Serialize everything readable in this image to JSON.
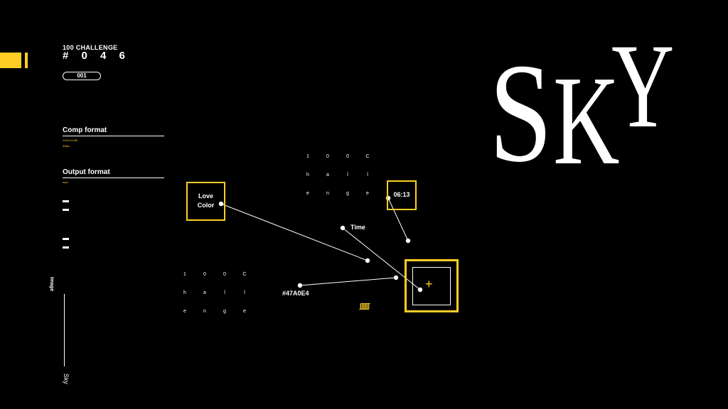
{
  "header": {
    "challenge_label": "100 CHALLENGE",
    "challenge_number": "# 0 4 6",
    "pill_label": "001"
  },
  "sidebar": {
    "comp_format_title": "Comp format",
    "comp_values": [
      "1920x1080",
      "30fps"
    ],
    "output_format_title": "Output format",
    "output_value": "mp4",
    "image_label": "Image",
    "sky_label": "Sky"
  },
  "title": {
    "s": "S",
    "k": "K",
    "y": "Y"
  },
  "nodes": {
    "love_color": [
      "Love",
      "Color"
    ],
    "time_value": "06:13",
    "time_label": "Time",
    "hex_color": "#47A0E4",
    "plus": "+",
    "squiggle": "∫∫∫∫∫∫"
  },
  "letter_grid": [
    "1",
    "0",
    "0",
    "C",
    "h",
    "a",
    "l",
    "l",
    "e",
    "n",
    "g",
    "e"
  ],
  "colors": {
    "accent": "#FFCE25",
    "background": "#000000",
    "foreground": "#FFFFFF"
  }
}
